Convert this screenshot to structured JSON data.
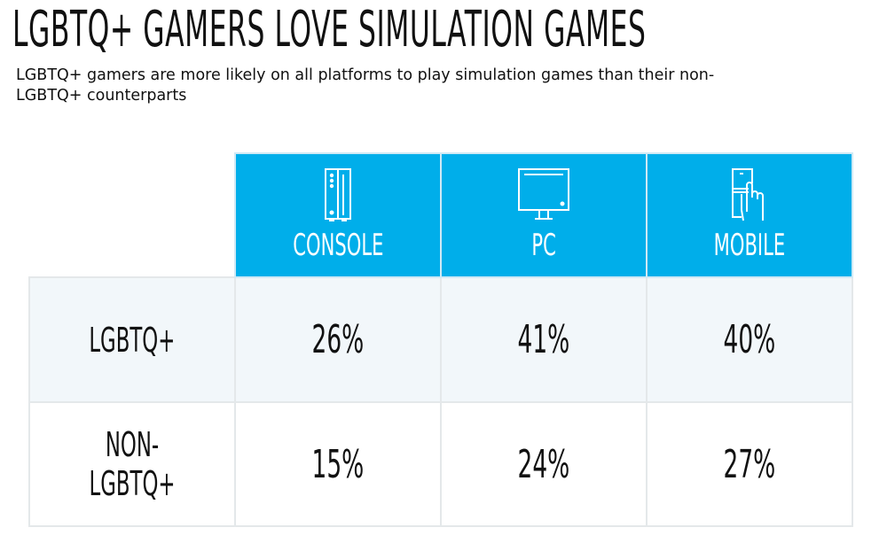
{
  "title": "LGBTQ+ GAMERS LOVE SIMULATION GAMES",
  "subtitle": "LGBTQ+ gamers are more likely on all platforms to play simulation games than their non-LGBTQ+ counterparts",
  "colors": {
    "header_bg": "#00aeea",
    "row1_bg": "#f2f7fa",
    "row2_bg": "#ffffff",
    "text": "#111111"
  },
  "chart_data": {
    "type": "table",
    "title": "LGBTQ+ GAMERS LOVE SIMULATION GAMES",
    "subtitle": "LGBTQ+ gamers are more likely on all platforms to play simulation games than their non-LGBTQ+ counterparts",
    "columns": [
      {
        "label": "CONSOLE",
        "icon": "console-icon"
      },
      {
        "label": "PC",
        "icon": "monitor-icon"
      },
      {
        "label": "MOBILE",
        "icon": "smartphone-touch-icon"
      }
    ],
    "rows": [
      {
        "label": "LGBTQ+",
        "values": [
          "26%",
          "41%",
          "40%"
        ]
      },
      {
        "label": "NON-LGBTQ+",
        "values": [
          "15%",
          "24%",
          "27%"
        ]
      }
    ]
  }
}
